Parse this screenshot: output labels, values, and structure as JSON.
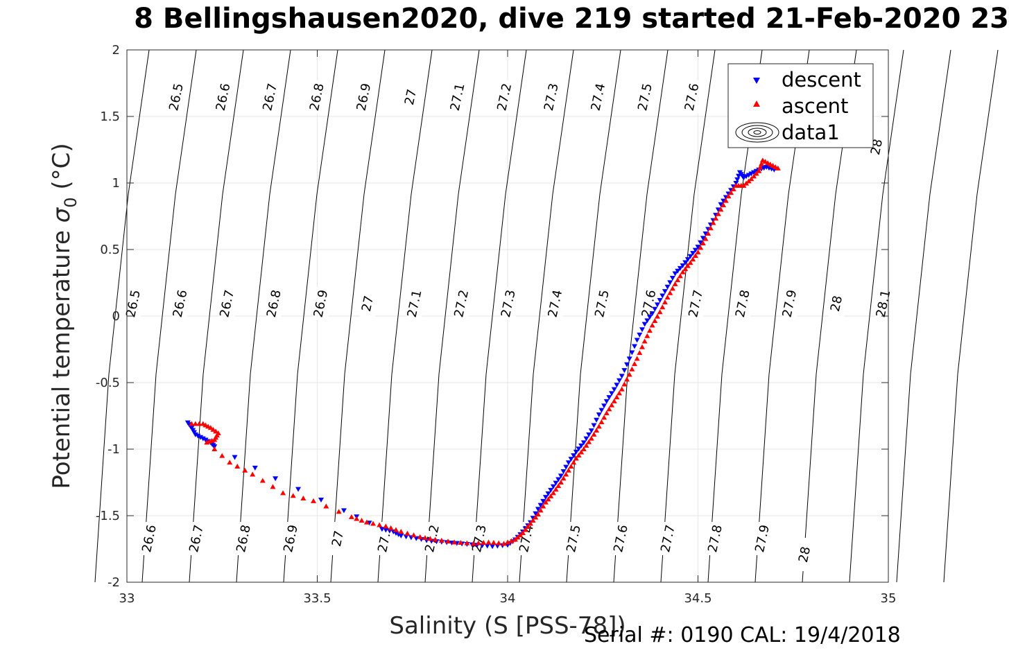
{
  "title": "8 Bellingshausen2020, dive 219 started 21-Feb-2020 23",
  "footer": "Serial #: 0190  CAL: 19/4/2018",
  "chart_data": {
    "type": "scatter",
    "xlabel": "Salinity (S [PSS-78])",
    "ylabel_prefix": "Potential temperature ",
    "ylabel_symbol": "σ",
    "ylabel_sub": "0",
    "ylabel_suffix": " (°C)",
    "xlim": [
      33,
      35
    ],
    "ylim": [
      -2,
      2
    ],
    "x_ticks": [
      33,
      33.5,
      34,
      34.5,
      35
    ],
    "x_tick_labels": [
      "33",
      "33.5",
      "34",
      "34.5",
      "35"
    ],
    "y_ticks": [
      -2,
      -1.5,
      -1,
      -0.5,
      0,
      0.5,
      1,
      1.5,
      2
    ],
    "y_tick_labels": [
      "-2",
      "-1.5",
      "-1",
      "-0.5",
      "0",
      "0.5",
      "1",
      "1.5",
      "2"
    ],
    "grid": true,
    "legend_position": "top-right",
    "legend": [
      "descent",
      "ascent",
      "data1"
    ],
    "colors": {
      "descent": "#0000ff",
      "ascent": "#ff0000",
      "contour": "#000000",
      "grid": "#e6e6e6"
    },
    "series": [
      {
        "name": "descent",
        "marker": "triangle-down",
        "points": [
          [
            33.16,
            -0.8
          ],
          [
            33.17,
            -0.84
          ],
          [
            33.18,
            -0.89
          ],
          [
            33.2,
            -0.92
          ],
          [
            33.22,
            -0.95
          ],
          [
            33.23,
            -0.98
          ],
          [
            33.39,
            -1.22
          ],
          [
            33.57,
            -1.46
          ],
          [
            33.67,
            -1.6
          ],
          [
            33.7,
            -1.62
          ],
          [
            33.72,
            -1.65
          ],
          [
            33.76,
            -1.67
          ],
          [
            33.8,
            -1.69
          ],
          [
            33.84,
            -1.7
          ],
          [
            33.88,
            -1.71
          ],
          [
            33.92,
            -1.72
          ],
          [
            33.96,
            -1.73
          ],
          [
            34.0,
            -1.72
          ],
          [
            34.02,
            -1.68
          ],
          [
            34.04,
            -1.62
          ],
          [
            34.06,
            -1.55
          ],
          [
            34.08,
            -1.45
          ],
          [
            34.1,
            -1.36
          ],
          [
            34.12,
            -1.28
          ],
          [
            34.14,
            -1.2
          ],
          [
            34.16,
            -1.1
          ],
          [
            34.18,
            -1.02
          ],
          [
            34.2,
            -0.95
          ],
          [
            34.22,
            -0.86
          ],
          [
            34.24,
            -0.74
          ],
          [
            34.26,
            -0.64
          ],
          [
            34.28,
            -0.55
          ],
          [
            34.3,
            -0.45
          ],
          [
            34.32,
            -0.32
          ],
          [
            34.34,
            -0.18
          ],
          [
            34.36,
            -0.06
          ],
          [
            34.38,
            0.02
          ],
          [
            34.4,
            0.12
          ],
          [
            34.42,
            0.22
          ],
          [
            34.44,
            0.32
          ],
          [
            34.46,
            0.38
          ],
          [
            34.48,
            0.45
          ],
          [
            34.5,
            0.52
          ],
          [
            34.52,
            0.62
          ],
          [
            34.54,
            0.72
          ],
          [
            34.56,
            0.84
          ],
          [
            34.58,
            0.92
          ],
          [
            34.6,
            1.0
          ],
          [
            34.61,
            1.08
          ],
          [
            34.62,
            1.04
          ],
          [
            34.64,
            1.07
          ],
          [
            34.66,
            1.1
          ],
          [
            34.68,
            1.12
          ],
          [
            34.7,
            1.1
          ]
        ]
      },
      {
        "name": "ascent",
        "marker": "triangle-up",
        "points": [
          [
            33.17,
            -0.81
          ],
          [
            33.2,
            -0.81
          ],
          [
            33.22,
            -0.84
          ],
          [
            33.24,
            -0.88
          ],
          [
            33.23,
            -0.93
          ],
          [
            33.21,
            -0.95
          ],
          [
            33.27,
            -1.1
          ],
          [
            33.33,
            -1.19
          ],
          [
            33.41,
            -1.33
          ],
          [
            33.49,
            -1.39
          ],
          [
            33.59,
            -1.51
          ],
          [
            33.63,
            -1.55
          ],
          [
            33.68,
            -1.58
          ],
          [
            33.72,
            -1.62
          ],
          [
            33.77,
            -1.66
          ],
          [
            33.81,
            -1.68
          ],
          [
            33.86,
            -1.7
          ],
          [
            33.91,
            -1.71
          ],
          [
            33.95,
            -1.7
          ],
          [
            33.99,
            -1.71
          ],
          [
            34.02,
            -1.68
          ],
          [
            34.04,
            -1.63
          ],
          [
            34.06,
            -1.56
          ],
          [
            34.08,
            -1.49
          ],
          [
            34.1,
            -1.4
          ],
          [
            34.12,
            -1.33
          ],
          [
            34.14,
            -1.25
          ],
          [
            34.16,
            -1.16
          ],
          [
            34.18,
            -1.07
          ],
          [
            34.2,
            -1.0
          ],
          [
            34.22,
            -0.92
          ],
          [
            34.24,
            -0.83
          ],
          [
            34.26,
            -0.73
          ],
          [
            34.28,
            -0.64
          ],
          [
            34.3,
            -0.55
          ],
          [
            34.32,
            -0.44
          ],
          [
            34.34,
            -0.32
          ],
          [
            34.36,
            -0.19
          ],
          [
            34.38,
            -0.07
          ],
          [
            34.4,
            0.03
          ],
          [
            34.42,
            0.14
          ],
          [
            34.44,
            0.24
          ],
          [
            34.46,
            0.33
          ],
          [
            34.48,
            0.4
          ],
          [
            34.5,
            0.48
          ],
          [
            34.52,
            0.58
          ],
          [
            34.54,
            0.7
          ],
          [
            34.56,
            0.8
          ],
          [
            34.58,
            0.9
          ],
          [
            34.6,
            0.98
          ],
          [
            34.62,
            0.98
          ],
          [
            34.64,
            1.03
          ],
          [
            34.66,
            1.09
          ],
          [
            34.67,
            1.17
          ],
          [
            34.69,
            1.14
          ],
          [
            34.71,
            1.11
          ]
        ]
      }
    ],
    "contour_labels_top": [
      "26.5",
      "26.6",
      "26.7",
      "26.8",
      "26.9",
      "27",
      "27.1",
      "27.2",
      "27.3",
      "27.4",
      "27.5",
      "27.6",
      "28"
    ],
    "contour_labels_mid": [
      "26.5",
      "26.6",
      "26.7",
      "26.8",
      "26.9",
      "27",
      "27.1",
      "27.2",
      "27.3",
      "27.4",
      "27.5",
      "27.6",
      "27.7",
      "27.8",
      "27.9",
      "28",
      "28.1"
    ],
    "contour_labels_bottom": [
      "26.6",
      "26.7",
      "26.8",
      "26.9",
      "27",
      "27.1",
      "27.2",
      "27.3",
      "27.4",
      "27.5",
      "27.6",
      "27.7",
      "27.8",
      "27.9",
      "28"
    ]
  }
}
